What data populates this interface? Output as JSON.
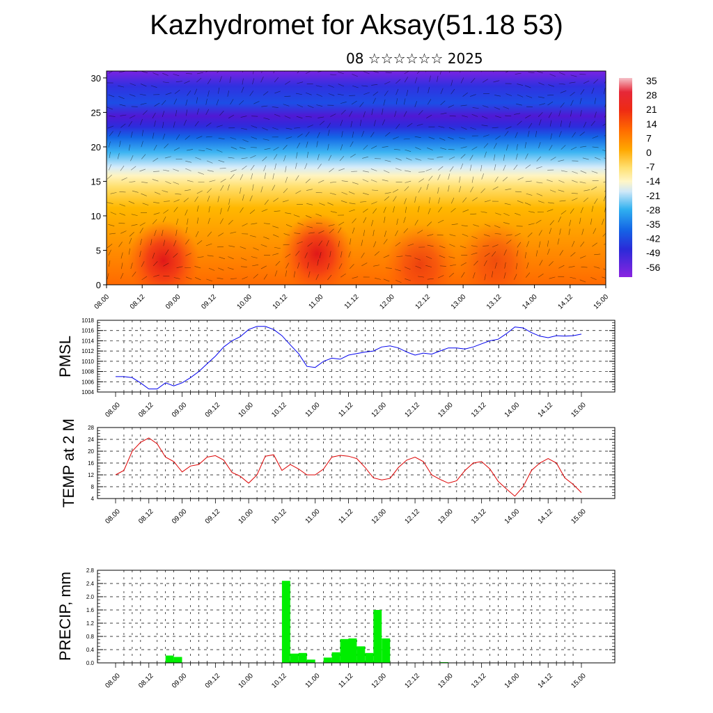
{
  "header": {
    "title": "Kazhydromet for Aksay(51.18 53)",
    "subtitle": "08 ☆☆☆☆☆☆ 2025"
  },
  "colors": {
    "pmsl_line": "#0000ee",
    "temp_line": "#dd0000",
    "precip_bar": "#00ee00",
    "colormap": [
      "#f4b8bf",
      "#e8203a",
      "#f03a14",
      "#ff8c00",
      "#ffc800",
      "#fff0a0",
      "#cfe8f8",
      "#34b0f0",
      "#1060e0",
      "#2a2ad8",
      "#4a18d8",
      "#8a20e0"
    ]
  },
  "chart_data": [
    {
      "type": "heatmap",
      "name": "cross-section",
      "y_ticks": [
        0,
        5,
        10,
        15,
        20,
        25,
        30
      ],
      "ylim": [
        0,
        31
      ],
      "x_ticks": [
        "08.00",
        "08.12",
        "09.00",
        "09.12",
        "10.00",
        "10.12",
        "11.00",
        "11.12",
        "12.00",
        "12.12",
        "13.00",
        "13.12",
        "14.00",
        "14.12",
        "15.00"
      ],
      "colorbar_labels": [
        "35",
        "28",
        "21",
        "14",
        "7",
        "0",
        "-7",
        "-14",
        "-21",
        "-28",
        "-35",
        "-42",
        "-49",
        "-56"
      ],
      "colorbar_range": [
        -63,
        35
      ],
      "warm_cores": [
        {
          "t": 0.8,
          "z": 3.5,
          "strength": 1.0
        },
        {
          "t": 2.95,
          "z": 4.5,
          "strength": 1.0
        },
        {
          "t": 4.4,
          "z": 3.0,
          "strength": 0.6
        },
        {
          "t": 5.45,
          "z": 3.5,
          "strength": 0.5
        }
      ]
    },
    {
      "type": "line",
      "ylabel": "PMSL",
      "ylim": [
        1004,
        1018
      ],
      "y_ticks": [
        1004,
        1006,
        1008,
        1010,
        1012,
        1014,
        1016,
        1018
      ],
      "x_ticks": [
        "08.00",
        "08.12",
        "09.00",
        "09.12",
        "10.00",
        "10.12",
        "11.00",
        "11.12",
        "12.00",
        "12.12",
        "13.00",
        "13.12",
        "14.00",
        "14.12",
        "15.00"
      ],
      "x": [
        0,
        0.125,
        0.25,
        0.375,
        0.5,
        0.625,
        0.75,
        0.875,
        1,
        1.125,
        1.25,
        1.375,
        1.5,
        1.625,
        1.75,
        1.875,
        2,
        2.125,
        2.25,
        2.375,
        2.5,
        2.625,
        2.75,
        2.875,
        3,
        3.125,
        3.25,
        3.375,
        3.5,
        3.625,
        3.75,
        3.875,
        4,
        4.125,
        4.25,
        4.375,
        4.5,
        4.625,
        4.75,
        4.875,
        5,
        5.125,
        5.25,
        5.375,
        5.5,
        5.625,
        5.75,
        5.875,
        6,
        6.125,
        6.25,
        6.375,
        6.5,
        6.625,
        6.75,
        6.875,
        7
      ],
      "values": [
        1007.0,
        1007.0,
        1006.8,
        1005.8,
        1004.6,
        1004.6,
        1005.8,
        1005.2,
        1005.8,
        1006.8,
        1008.0,
        1009.5,
        1011.0,
        1012.8,
        1014.0,
        1014.8,
        1016.2,
        1016.8,
        1016.8,
        1016.2,
        1015.0,
        1013.2,
        1011.5,
        1009.0,
        1008.8,
        1010.0,
        1010.6,
        1010.4,
        1011.2,
        1011.5,
        1011.8,
        1012.0,
        1012.8,
        1013.0,
        1012.6,
        1011.8,
        1011.2,
        1011.6,
        1011.4,
        1012.0,
        1012.6,
        1012.6,
        1012.4,
        1012.8,
        1013.4,
        1014.0,
        1014.3,
        1015.4,
        1016.7,
        1016.5,
        1015.6,
        1014.9,
        1014.6,
        1015.0,
        1014.9,
        1015.0,
        1015.3
      ]
    },
    {
      "type": "line",
      "ylabel": "TEMP at 2 M",
      "ylim": [
        4,
        28
      ],
      "y_ticks": [
        4,
        8,
        12,
        16,
        20,
        24,
        28
      ],
      "x_ticks": [
        "08.00",
        "08.12",
        "09.00",
        "09.12",
        "10.00",
        "10.12",
        "11.00",
        "11.12",
        "12.00",
        "12.12",
        "13.00",
        "13.12",
        "14.00",
        "14.12",
        "15.00"
      ],
      "x": [
        0,
        0.125,
        0.25,
        0.375,
        0.5,
        0.625,
        0.75,
        0.875,
        1,
        1.125,
        1.25,
        1.375,
        1.5,
        1.625,
        1.75,
        1.875,
        2,
        2.125,
        2.25,
        2.375,
        2.5,
        2.625,
        2.75,
        2.875,
        3,
        3.125,
        3.25,
        3.375,
        3.5,
        3.625,
        3.75,
        3.875,
        4,
        4.125,
        4.25,
        4.375,
        4.5,
        4.625,
        4.75,
        4.875,
        5,
        5.125,
        5.25,
        5.375,
        5.5,
        5.625,
        5.75,
        5.875,
        6,
        6.125,
        6.25,
        6.375,
        6.5,
        6.625,
        6.75,
        6.875,
        7
      ],
      "values": [
        12.0,
        13.5,
        20.0,
        23.0,
        24.5,
        22.5,
        18.0,
        16.5,
        13.0,
        15.0,
        15.5,
        18.0,
        18.5,
        17.0,
        12.8,
        11.5,
        9.2,
        12.0,
        18.3,
        18.8,
        13.5,
        15.5,
        14.0,
        12.0,
        12.0,
        14.0,
        18.0,
        18.6,
        18.3,
        17.5,
        14.5,
        11.0,
        10.3,
        10.8,
        14.5,
        17.0,
        18.0,
        16.5,
        12.0,
        10.5,
        9.2,
        10.0,
        13.5,
        16.0,
        16.5,
        14.0,
        9.8,
        7.2,
        4.8,
        8.0,
        13.5,
        16.0,
        17.5,
        16.0,
        11.0,
        8.8,
        6.0
      ]
    },
    {
      "type": "bar",
      "ylabel": "PRECIP, mm",
      "ylim": [
        0,
        2.8
      ],
      "y_ticks": [
        "0.0",
        "0.4",
        "0.8",
        "1.2",
        "1.6",
        "2.0",
        "2.4",
        "2.8"
      ],
      "x_ticks": [
        "08.00",
        "08.12",
        "09.00",
        "09.12",
        "10.00",
        "10.12",
        "11.00",
        "11.12",
        "12.00",
        "12.12",
        "13.00",
        "13.12",
        "14.00",
        "14.12",
        "15.00"
      ],
      "bar_width": 0.125,
      "x": [
        0.75,
        0.875,
        2.5,
        2.625,
        2.75,
        2.875,
        3.125,
        3.25,
        3.375,
        3.5,
        3.625,
        3.75,
        3.875,
        4.0,
        4.875
      ],
      "values": [
        0.22,
        0.18,
        2.48,
        0.28,
        0.3,
        0.1,
        0.16,
        0.32,
        0.72,
        0.74,
        0.5,
        0.3,
        1.6,
        0.74,
        0.02
      ]
    }
  ]
}
